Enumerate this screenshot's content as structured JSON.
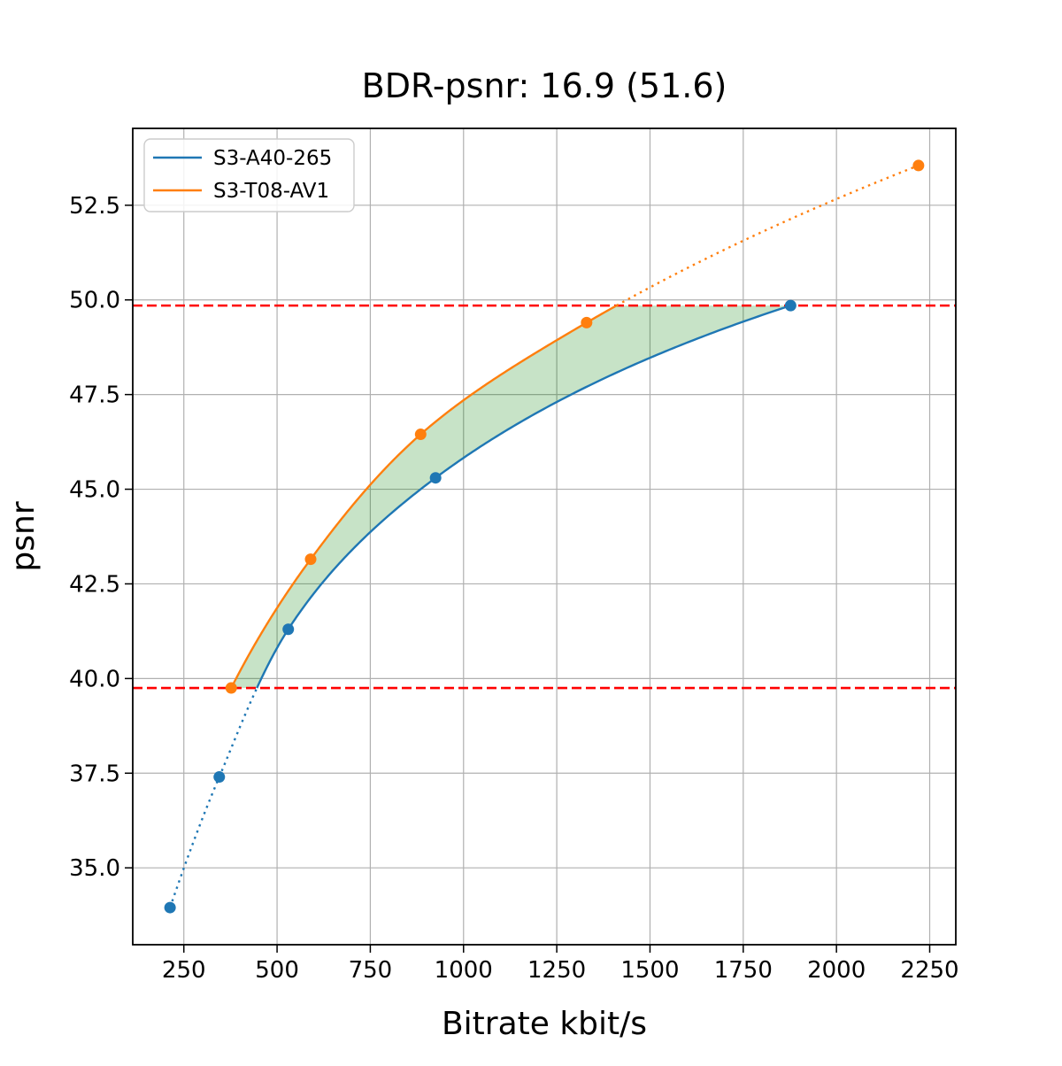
{
  "chart_data": {
    "type": "line",
    "title": "BDR-psnr: 16.9 (51.6)",
    "xlabel": "Bitrate kbit/s",
    "ylabel": "psnr",
    "xlim": [
      113,
      2320
    ],
    "ylim": [
      32.97,
      54.53
    ],
    "xticks": {
      "values": [
        250,
        500,
        750,
        1000,
        1250,
        1500,
        1750,
        2000,
        2250
      ],
      "labels": [
        "250",
        "500",
        "750",
        "1000",
        "1250",
        "1500",
        "1750",
        "2000",
        "2250"
      ]
    },
    "yticks": {
      "values": [
        35.0,
        37.5,
        40.0,
        42.5,
        45.0,
        47.5,
        50.0,
        52.5
      ],
      "labels": [
        "35.0",
        "37.5",
        "40.0",
        "42.5",
        "45.0",
        "47.5",
        "50.0",
        "52.5"
      ]
    },
    "grid": true,
    "grid_color": "#b0b0b0",
    "interpolation": "pchip-log-x",
    "series": [
      {
        "name": "S3-A40-265",
        "color": "#1f77b4",
        "marker": "circle",
        "x": [
          213,
          345,
          530,
          925,
          1877
        ],
        "y": [
          33.95,
          37.4,
          41.3,
          45.3,
          49.85
        ],
        "style_outside_band": "dotted"
      },
      {
        "name": "S3-T08-AV1",
        "color": "#ff7f0e",
        "marker": "circle",
        "x": [
          377,
          590,
          885,
          1330,
          2220
        ],
        "y": [
          39.75,
          43.15,
          46.45,
          49.4,
          53.55
        ],
        "style_outside_band": "dotted"
      }
    ],
    "reference_lines": [
      {
        "id": "upper",
        "y": 49.85,
        "color": "#ff0000",
        "style": "dashed"
      },
      {
        "id": "lower",
        "y": 39.75,
        "color": "#ff0000",
        "style": "dashed"
      }
    ],
    "shaded_region": {
      "between": [
        "S3-T08-AV1",
        "S3-A40-265"
      ],
      "y_range": [
        39.75,
        49.85
      ],
      "color": "#008000",
      "alpha": 0.22
    },
    "legend": {
      "position": "upper-left",
      "entries": [
        "S3-A40-265",
        "S3-T08-AV1"
      ]
    }
  }
}
